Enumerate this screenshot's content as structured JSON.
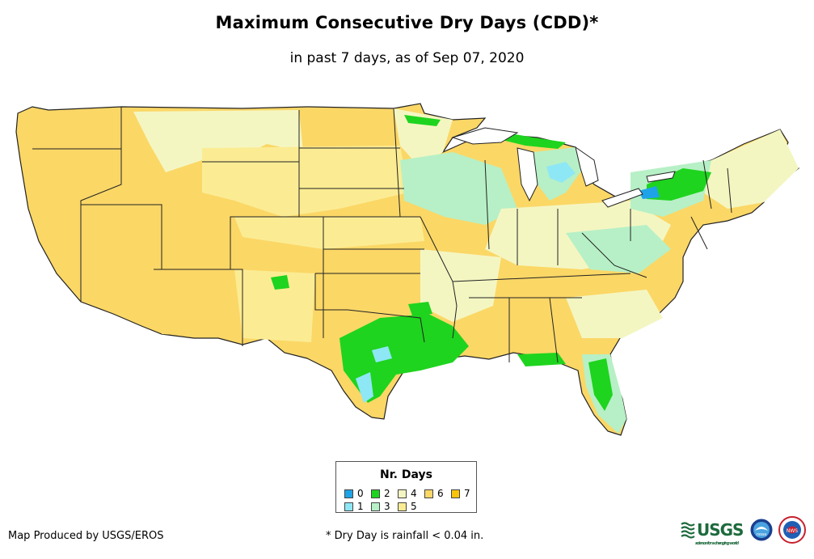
{
  "title": "Maximum Consecutive Dry Days (CDD)*",
  "subtitle": "in past 7 days, as of Sep 07, 2020",
  "legend": {
    "title": "Nr. Days",
    "items": [
      {
        "label": "0",
        "color": "#1fa3e8"
      },
      {
        "label": "1",
        "color": "#8ee7f5"
      },
      {
        "label": "2",
        "color": "#1ed41e"
      },
      {
        "label": "3",
        "color": "#b7f0c6"
      },
      {
        "label": "4",
        "color": "#f4f6c2"
      },
      {
        "label": "5",
        "color": "#fbec94"
      },
      {
        "label": "6",
        "color": "#fbd766"
      },
      {
        "label": "7",
        "color": "#fbc40c"
      }
    ]
  },
  "footer": {
    "credit": "Map Produced by USGS/EROS",
    "note": "* Dry Day is rainfall < 0.04 in."
  },
  "logos": {
    "usgs_text": "USGS",
    "usgs_tagline": "science for a changing world",
    "noaa_text": "noaa",
    "nws_text": "NWS"
  }
}
